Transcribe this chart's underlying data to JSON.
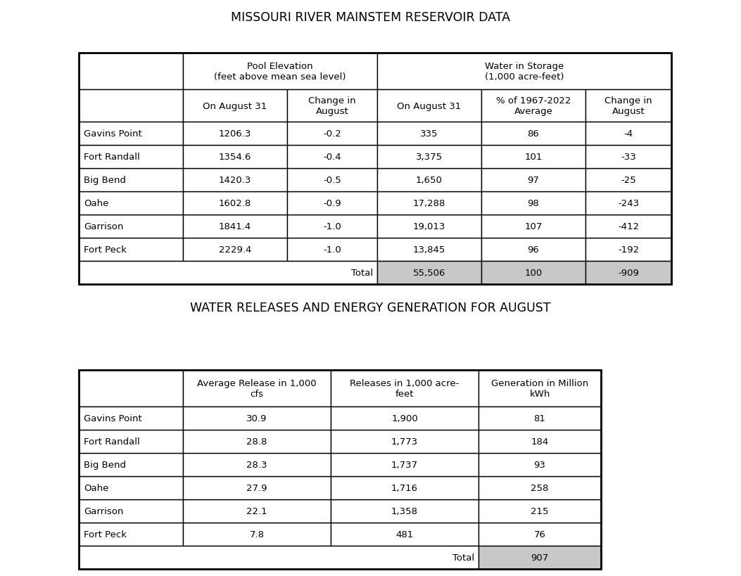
{
  "title1": "MISSOURI RIVER MAINSTEM RESERVOIR DATA",
  "title2": "WATER RELEASES AND ENERGY GENERATION FOR AUGUST",
  "table1": {
    "reservoirs": [
      "Fort Peck",
      "Garrison",
      "Oahe",
      "Big Bend",
      "Fort Randall",
      "Gavins Point"
    ],
    "pool_elev_aug31": [
      "2229.4",
      "1841.4",
      "1602.8",
      "1420.3",
      "1354.6",
      "1206.3"
    ],
    "pool_elev_change": [
      "-1.0",
      "-1.0",
      "-0.9",
      "-0.5",
      "-0.4",
      "-0.2"
    ],
    "storage_aug31": [
      "13,845",
      "19,013",
      "17,288",
      "1,650",
      "3,375",
      "335"
    ],
    "storage_pct": [
      "96",
      "107",
      "98",
      "97",
      "101",
      "86"
    ],
    "storage_change": [
      "-192",
      "-412",
      "-243",
      "-25",
      "-33",
      "-4"
    ],
    "total_storage": "55,506",
    "total_pct": "100",
    "total_change": "-909"
  },
  "table2": {
    "reservoirs": [
      "Fort Peck",
      "Garrison",
      "Oahe",
      "Big Bend",
      "Fort Randall",
      "Gavins Point"
    ],
    "avg_release": [
      "7.8",
      "22.1",
      "27.9",
      "28.3",
      "28.8",
      "30.9"
    ],
    "releases_af": [
      "481",
      "1,358",
      "1,716",
      "1,737",
      "1,773",
      "1,900"
    ],
    "generation": [
      "76",
      "215",
      "258",
      "93",
      "184",
      "81"
    ],
    "total_generation": "907"
  },
  "bg_color": "#ffffff",
  "text_color": "#000000",
  "title_fontsize": 12.5,
  "header_fontsize": 9.5,
  "data_fontsize": 9.5,
  "total_row_bg": "#c8c8c8"
}
